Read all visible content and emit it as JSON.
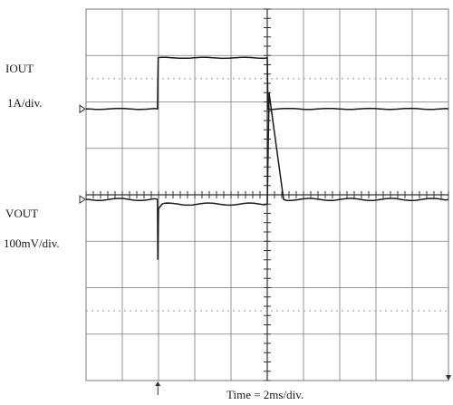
{
  "labels": {
    "ch1_name": "IOUT",
    "ch1_scale": "1A/div.",
    "ch2_name": "VOUT",
    "ch2_scale": "100mV/div.",
    "timebase": "Time = 2ms/div."
  },
  "colors": {
    "trace": "#1a1a1a",
    "grid": "#7a7a7a",
    "dotted": "#9a9a9a",
    "background": "#ffffff"
  },
  "chart_data": {
    "type": "line",
    "title": "",
    "grid": true,
    "divisions": {
      "x": 10,
      "y": 8
    },
    "xlabel": "Time = 2ms/div.",
    "series": [
      {
        "name": "IOUT",
        "scale": "1A/div.",
        "unit": "A",
        "baseline_div": 5.85,
        "points": [
          [
            0,
            0
          ],
          [
            1.97,
            0
          ],
          [
            1.99,
            1.1
          ],
          [
            5.0,
            1.1
          ],
          [
            5.02,
            0
          ],
          [
            10,
            0
          ]
        ]
      },
      {
        "name": "VOUT",
        "scale": "100mV/div.",
        "unit": "mV",
        "baseline_div": 3.9,
        "points": [
          [
            0,
            0
          ],
          [
            1.97,
            0
          ],
          [
            1.98,
            -130
          ],
          [
            2.0,
            -20
          ],
          [
            2.1,
            -10
          ],
          [
            5.0,
            -10
          ],
          [
            5.05,
            230
          ],
          [
            5.1,
            200
          ],
          [
            5.45,
            0
          ],
          [
            10,
            0
          ]
        ]
      }
    ]
  }
}
